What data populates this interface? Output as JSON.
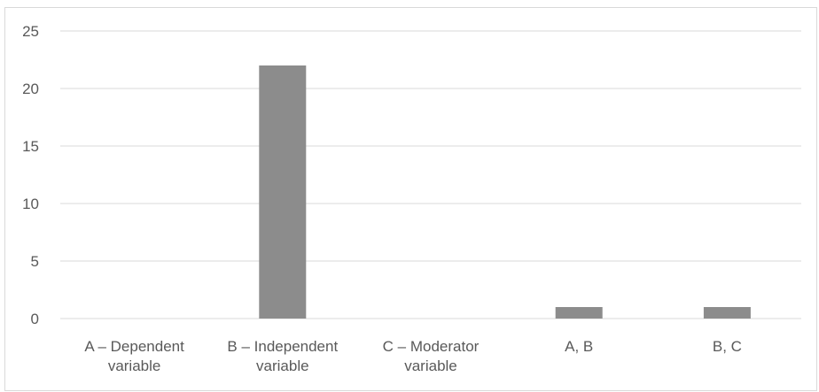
{
  "chart_data": {
    "type": "bar",
    "categories": [
      [
        "A – Dependent",
        "variable"
      ],
      [
        "B – Independent",
        "variable"
      ],
      [
        "C – Moderator",
        "variable"
      ],
      [
        "A, B"
      ],
      [
        "B, C"
      ]
    ],
    "values": [
      0,
      22,
      0,
      1,
      1
    ],
    "ylim": [
      0,
      25
    ],
    "yticks": [
      0,
      5,
      10,
      15,
      20,
      25
    ],
    "grid": true,
    "legend": "none",
    "title": "",
    "xlabel": "",
    "ylabel": "",
    "colors": {
      "bar": "#8c8c8c",
      "grid": "#d9d9d9",
      "text": "#595959",
      "border": "#d9d9d9"
    }
  }
}
